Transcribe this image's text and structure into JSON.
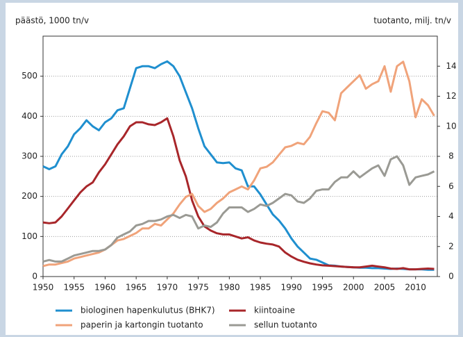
{
  "chart_data": {
    "type": "line",
    "y_label": "päästö, 1000 tn/v",
    "y2_label": "tuotanto, milj. tn/v",
    "x": [
      1950,
      1951,
      1952,
      1953,
      1954,
      1955,
      1956,
      1957,
      1958,
      1959,
      1960,
      1961,
      1962,
      1963,
      1964,
      1965,
      1966,
      1967,
      1968,
      1969,
      1970,
      1971,
      1972,
      1973,
      1974,
      1975,
      1976,
      1977,
      1978,
      1979,
      1980,
      1981,
      1982,
      1983,
      1984,
      1985,
      1986,
      1987,
      1988,
      1989,
      1990,
      1991,
      1992,
      1993,
      1994,
      1995,
      1996,
      1997,
      1998,
      1999,
      2000,
      2001,
      2002,
      2003,
      2004,
      2005,
      2006,
      2007,
      2008,
      2009,
      2010,
      2011,
      2012,
      2013
    ],
    "xlim": [
      1950,
      2013.5
    ],
    "xticks": [
      1950,
      1955,
      1960,
      1965,
      1970,
      1975,
      1980,
      1985,
      1990,
      1995,
      2000,
      2005,
      2010
    ],
    "ylim": [
      0,
      600
    ],
    "yticks": [
      0,
      100,
      200,
      300,
      400,
      500
    ],
    "y2lim": [
      0,
      16
    ],
    "y2ticks": [
      0,
      2,
      4,
      6,
      8,
      10,
      12,
      14
    ],
    "grid": true,
    "series": [
      {
        "name": "biologinen hapenkulutus (BHK7)",
        "color": "#1f8fcf",
        "axis": "y",
        "values": [
          275,
          268,
          275,
          305,
          325,
          355,
          370,
          390,
          375,
          365,
          385,
          395,
          415,
          420,
          470,
          520,
          525,
          525,
          520,
          530,
          537,
          525,
          500,
          460,
          420,
          370,
          325,
          305,
          285,
          283,
          285,
          270,
          265,
          225,
          225,
          205,
          180,
          155,
          140,
          120,
          95,
          75,
          60,
          45,
          42,
          35,
          28,
          27,
          25,
          24,
          23,
          22,
          22,
          21,
          21,
          20,
          19,
          20,
          19,
          18,
          18,
          18,
          17,
          17
        ]
      },
      {
        "name": "kiintoaine",
        "color": "#a8262a",
        "axis": "y",
        "values": [
          135,
          133,
          135,
          150,
          170,
          190,
          210,
          225,
          235,
          260,
          280,
          305,
          330,
          350,
          375,
          385,
          385,
          380,
          378,
          385,
          395,
          350,
          290,
          250,
          190,
          150,
          125,
          115,
          108,
          105,
          105,
          100,
          95,
          98,
          90,
          85,
          82,
          80,
          75,
          60,
          50,
          42,
          37,
          33,
          30,
          28,
          27,
          26,
          25,
          24,
          23,
          23,
          25,
          27,
          25,
          23,
          20,
          19,
          21,
          18,
          18,
          19,
          20,
          19
        ]
      },
      {
        "name": "paperin ja kartongin tuotanto",
        "color": "#f0a37a",
        "axis": "y2",
        "values": [
          0.7,
          0.8,
          0.8,
          0.9,
          1.0,
          1.2,
          1.3,
          1.4,
          1.5,
          1.6,
          1.8,
          2.1,
          2.4,
          2.5,
          2.7,
          2.9,
          3.2,
          3.2,
          3.5,
          3.4,
          3.8,
          4.2,
          4.8,
          5.3,
          5.5,
          4.7,
          4.3,
          4.5,
          4.9,
          5.2,
          5.6,
          5.8,
          6.0,
          5.8,
          6.4,
          7.2,
          7.3,
          7.6,
          8.1,
          8.6,
          8.7,
          8.9,
          8.8,
          9.3,
          10.2,
          11.0,
          10.9,
          10.4,
          12.2,
          12.6,
          13.0,
          13.4,
          12.5,
          12.8,
          13.0,
          14.0,
          12.3,
          14.0,
          14.3,
          13.0,
          10.6,
          11.8,
          11.4,
          10.7
        ]
      },
      {
        "name": "sellun tuotanto",
        "color": "#9a9a94",
        "axis": "y2",
        "values": [
          1.0,
          1.1,
          1.0,
          1.0,
          1.2,
          1.4,
          1.5,
          1.6,
          1.7,
          1.7,
          1.8,
          2.1,
          2.6,
          2.8,
          3.0,
          3.4,
          3.5,
          3.7,
          3.7,
          3.8,
          4.0,
          4.1,
          3.9,
          4.1,
          4.0,
          3.2,
          3.4,
          3.3,
          3.6,
          4.2,
          4.6,
          4.6,
          4.6,
          4.3,
          4.5,
          4.8,
          4.7,
          4.9,
          5.2,
          5.5,
          5.4,
          5.0,
          4.9,
          5.2,
          5.7,
          5.8,
          5.8,
          6.3,
          6.6,
          6.6,
          7.0,
          6.6,
          6.9,
          7.2,
          7.4,
          6.7,
          7.8,
          8.0,
          7.4,
          6.1,
          6.6,
          6.7,
          6.8,
          7.0
        ]
      }
    ]
  }
}
